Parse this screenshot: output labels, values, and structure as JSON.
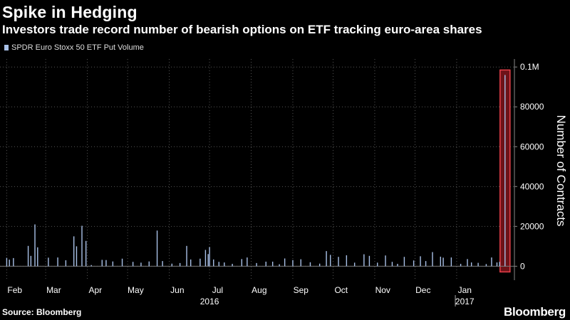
{
  "title": "Spike in Hedging",
  "subtitle": "Investors trade record number of bearish options on ETF tracking euro-area shares",
  "source": "Source: Bloomberg",
  "brand": "Bloomberg",
  "colors": {
    "bar": "#a9c1e8",
    "highlight": "#e8404a",
    "highlight_fill": "#6e1218",
    "grid": "#555555"
  },
  "chart_data": {
    "type": "bar",
    "series": [
      {
        "name": "SPDR Euro Stoxx 50 ETF Put Volume",
        "points": [
          {
            "x": "2016-02-01",
            "y": 4200
          },
          {
            "x": "2016-02-03",
            "y": 3300
          },
          {
            "x": "2016-02-06",
            "y": 4100
          },
          {
            "x": "2016-02-17",
            "y": 10200
          },
          {
            "x": "2016-02-19",
            "y": 5200
          },
          {
            "x": "2016-02-22",
            "y": 21000
          },
          {
            "x": "2016-02-24",
            "y": 9500
          },
          {
            "x": "2016-03-03",
            "y": 4300
          },
          {
            "x": "2016-03-10",
            "y": 4400
          },
          {
            "x": "2016-03-16",
            "y": 3000
          },
          {
            "x": "2016-03-22",
            "y": 15000
          },
          {
            "x": "2016-03-24",
            "y": 10000
          },
          {
            "x": "2016-03-28",
            "y": 20300
          },
          {
            "x": "2016-03-31",
            "y": 12700
          },
          {
            "x": "2016-04-04",
            "y": 600
          },
          {
            "x": "2016-04-12",
            "y": 3200
          },
          {
            "x": "2016-04-15",
            "y": 3100
          },
          {
            "x": "2016-04-20",
            "y": 2400
          },
          {
            "x": "2016-04-27",
            "y": 3800
          },
          {
            "x": "2016-05-05",
            "y": 2200
          },
          {
            "x": "2016-05-11",
            "y": 1800
          },
          {
            "x": "2016-05-17",
            "y": 2400
          },
          {
            "x": "2016-05-23",
            "y": 17900
          },
          {
            "x": "2016-05-27",
            "y": 2600
          },
          {
            "x": "2016-06-03",
            "y": 1300
          },
          {
            "x": "2016-06-09",
            "y": 1600
          },
          {
            "x": "2016-06-14",
            "y": 10200
          },
          {
            "x": "2016-06-17",
            "y": 3400
          },
          {
            "x": "2016-06-24",
            "y": 3800
          },
          {
            "x": "2016-06-28",
            "y": 8200
          },
          {
            "x": "2016-06-30",
            "y": 6100
          },
          {
            "x": "2016-07-01",
            "y": 9600
          },
          {
            "x": "2016-07-04",
            "y": 3400
          },
          {
            "x": "2016-07-08",
            "y": 2200
          },
          {
            "x": "2016-07-12",
            "y": 1900
          },
          {
            "x": "2016-07-18",
            "y": 1200
          },
          {
            "x": "2016-07-25",
            "y": 3600
          },
          {
            "x": "2016-07-29",
            "y": 4400
          },
          {
            "x": "2016-08-05",
            "y": 1600
          },
          {
            "x": "2016-08-12",
            "y": 2300
          },
          {
            "x": "2016-08-17",
            "y": 2300
          },
          {
            "x": "2016-08-22",
            "y": 1000
          },
          {
            "x": "2016-08-26",
            "y": 3900
          },
          {
            "x": "2016-09-01",
            "y": 3100
          },
          {
            "x": "2016-09-07",
            "y": 3500
          },
          {
            "x": "2016-09-14",
            "y": 2000
          },
          {
            "x": "2016-09-21",
            "y": 1300
          },
          {
            "x": "2016-09-26",
            "y": 7600
          },
          {
            "x": "2016-09-29",
            "y": 5700
          },
          {
            "x": "2016-10-05",
            "y": 4700
          },
          {
            "x": "2016-10-11",
            "y": 5500
          },
          {
            "x": "2016-10-17",
            "y": 1800
          },
          {
            "x": "2016-10-24",
            "y": 6000
          },
          {
            "x": "2016-10-28",
            "y": 5200
          },
          {
            "x": "2016-11-03",
            "y": 1800
          },
          {
            "x": "2016-11-09",
            "y": 5400
          },
          {
            "x": "2016-11-14",
            "y": 2200
          },
          {
            "x": "2016-11-18",
            "y": 1200
          },
          {
            "x": "2016-11-23",
            "y": 4700
          },
          {
            "x": "2016-11-30",
            "y": 2900
          },
          {
            "x": "2016-12-05",
            "y": 5000
          },
          {
            "x": "2016-12-09",
            "y": 2600
          },
          {
            "x": "2016-12-14",
            "y": 7100
          },
          {
            "x": "2016-12-20",
            "y": 4800
          },
          {
            "x": "2016-12-22",
            "y": 4300
          },
          {
            "x": "2016-12-28",
            "y": 4400
          },
          {
            "x": "2017-01-04",
            "y": 1200
          },
          {
            "x": "2017-01-09",
            "y": 3600
          },
          {
            "x": "2017-01-12",
            "y": 1900
          },
          {
            "x": "2017-01-17",
            "y": 1700
          },
          {
            "x": "2017-01-23",
            "y": 1100
          },
          {
            "x": "2017-01-27",
            "y": 4400
          },
          {
            "x": "2017-01-31",
            "y": 1900
          },
          {
            "x": "2017-02-02",
            "y": 2200
          },
          {
            "x": "2017-02-06",
            "y": 96000
          }
        ]
      }
    ],
    "highlight": {
      "x": "2017-02-06",
      "y": 96000
    },
    "x_start": "2016-01-27",
    "x_end": "2017-02-13",
    "ylim": [
      -7000,
      104000
    ],
    "y_ticks": [
      {
        "v": 100000,
        "label": "0.1M"
      },
      {
        "v": 80000,
        "label": "80000"
      },
      {
        "v": 60000,
        "label": "60000"
      },
      {
        "v": 40000,
        "label": "40000"
      },
      {
        "v": 20000,
        "label": "20000"
      },
      {
        "v": 0,
        "label": "0"
      }
    ],
    "x_ticks": [
      {
        "date": "2016-02-07",
        "label": "Feb"
      },
      {
        "date": "2016-03-07",
        "label": "Mar"
      },
      {
        "date": "2016-04-07",
        "label": "Apr"
      },
      {
        "date": "2016-05-07",
        "label": "May"
      },
      {
        "date": "2016-06-07",
        "label": "Jun"
      },
      {
        "date": "2016-07-07",
        "label": "Jul"
      },
      {
        "date": "2016-08-07",
        "label": "Aug"
      },
      {
        "date": "2016-09-07",
        "label": "Sep"
      },
      {
        "date": "2016-10-07",
        "label": "Oct"
      },
      {
        "date": "2016-11-07",
        "label": "Nov"
      },
      {
        "date": "2016-12-07",
        "label": "Dec"
      },
      {
        "date": "2017-01-07",
        "label": "Jan"
      }
    ],
    "years": [
      {
        "date": "2016-07-01",
        "label": "2016"
      },
      {
        "date": "2017-01-07",
        "label": "2017"
      }
    ],
    "year_divider": "2016-12-31",
    "ylabel": "Number of Contracts",
    "xlabel": "",
    "grid": true,
    "legend": "top-left"
  }
}
